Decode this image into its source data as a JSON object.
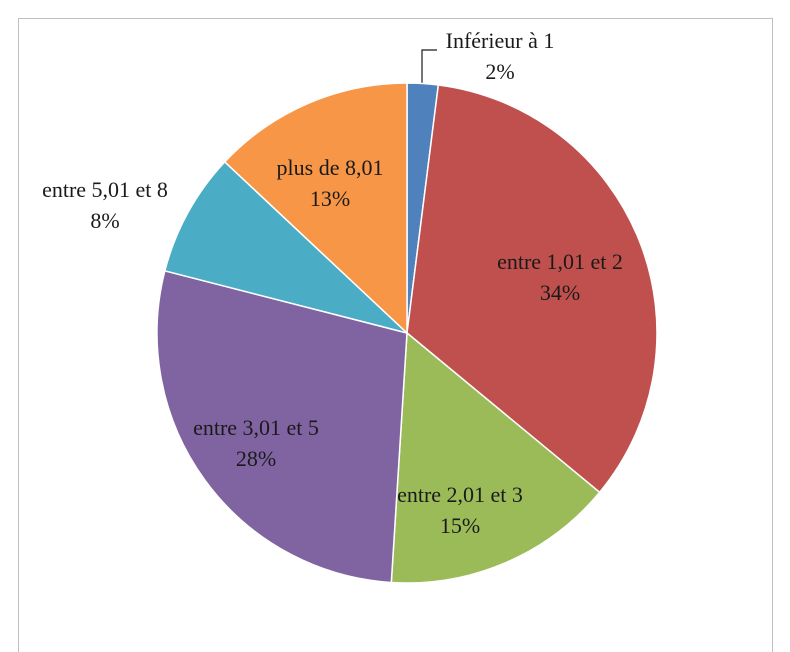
{
  "chart_data": {
    "type": "pie",
    "categories": [
      "Inférieur à 1",
      "entre 1,01 et 2",
      "entre 2,01 et 3",
      "entre 3,01 et 5",
      "entre 5,01 et 8",
      "plus de 8,01"
    ],
    "values": [
      2,
      34,
      15,
      28,
      8,
      13
    ],
    "value_labels": [
      "2%",
      "34%",
      "15%",
      "28%",
      "8%",
      "13%"
    ],
    "colors": [
      "#4f81bd",
      "#c0504d",
      "#9bbb59",
      "#8064a2",
      "#4bacc6",
      "#f79646"
    ]
  }
}
